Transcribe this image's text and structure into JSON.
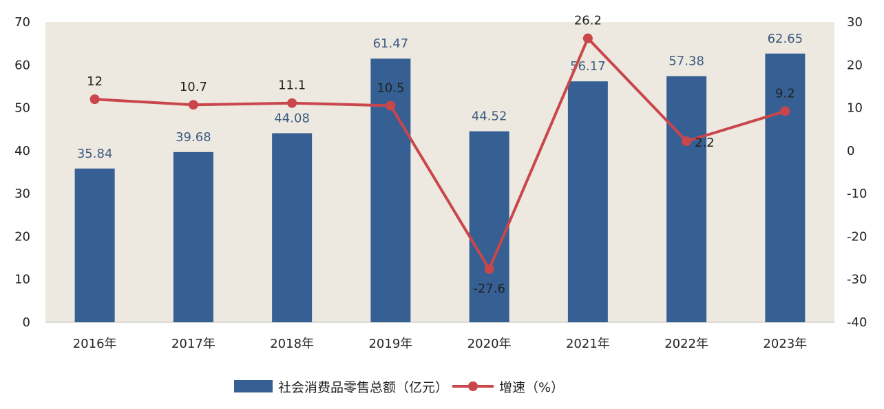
{
  "chart_data": {
    "type": "bar",
    "categories": [
      "2016年",
      "2017年",
      "2018年",
      "2019年",
      "2020年",
      "2021年",
      "2022年",
      "2023年"
    ],
    "series": [
      {
        "name": "社会消费品零售总额（亿元）",
        "type": "bar",
        "axis": "left",
        "values": [
          35.84,
          39.68,
          44.08,
          61.47,
          44.52,
          56.17,
          57.38,
          62.65
        ],
        "labels": [
          "35.84",
          "39.68",
          "44.08",
          "61.47",
          "44.52",
          "56.17",
          "57.38",
          "62.65"
        ],
        "color": "#365f94"
      },
      {
        "name": "增速（%）",
        "type": "line",
        "axis": "right",
        "values": [
          12,
          10.7,
          11.1,
          10.5,
          -27.6,
          26.2,
          2.2,
          9.2
        ],
        "labels": [
          "12",
          "10.7",
          "11.1",
          "10.5",
          "-27.6",
          "26.2",
          "2.2",
          "9.2"
        ],
        "color": "#c9464b"
      }
    ],
    "left_axis": {
      "min": 0,
      "max": 70,
      "ticks": [
        "0",
        "10",
        "20",
        "30",
        "40",
        "50",
        "60",
        "70"
      ]
    },
    "right_axis": {
      "min": -40,
      "max": 30,
      "ticks": [
        "-40",
        "-30",
        "-20",
        "-10",
        "0",
        "10",
        "20",
        "30"
      ]
    },
    "grid": false,
    "plot_background": "#ede9e0",
    "legend_position": "bottom"
  },
  "legend": {
    "bar_label": "社会消费品零售总额（亿元）",
    "line_label": "增速（%）"
  }
}
